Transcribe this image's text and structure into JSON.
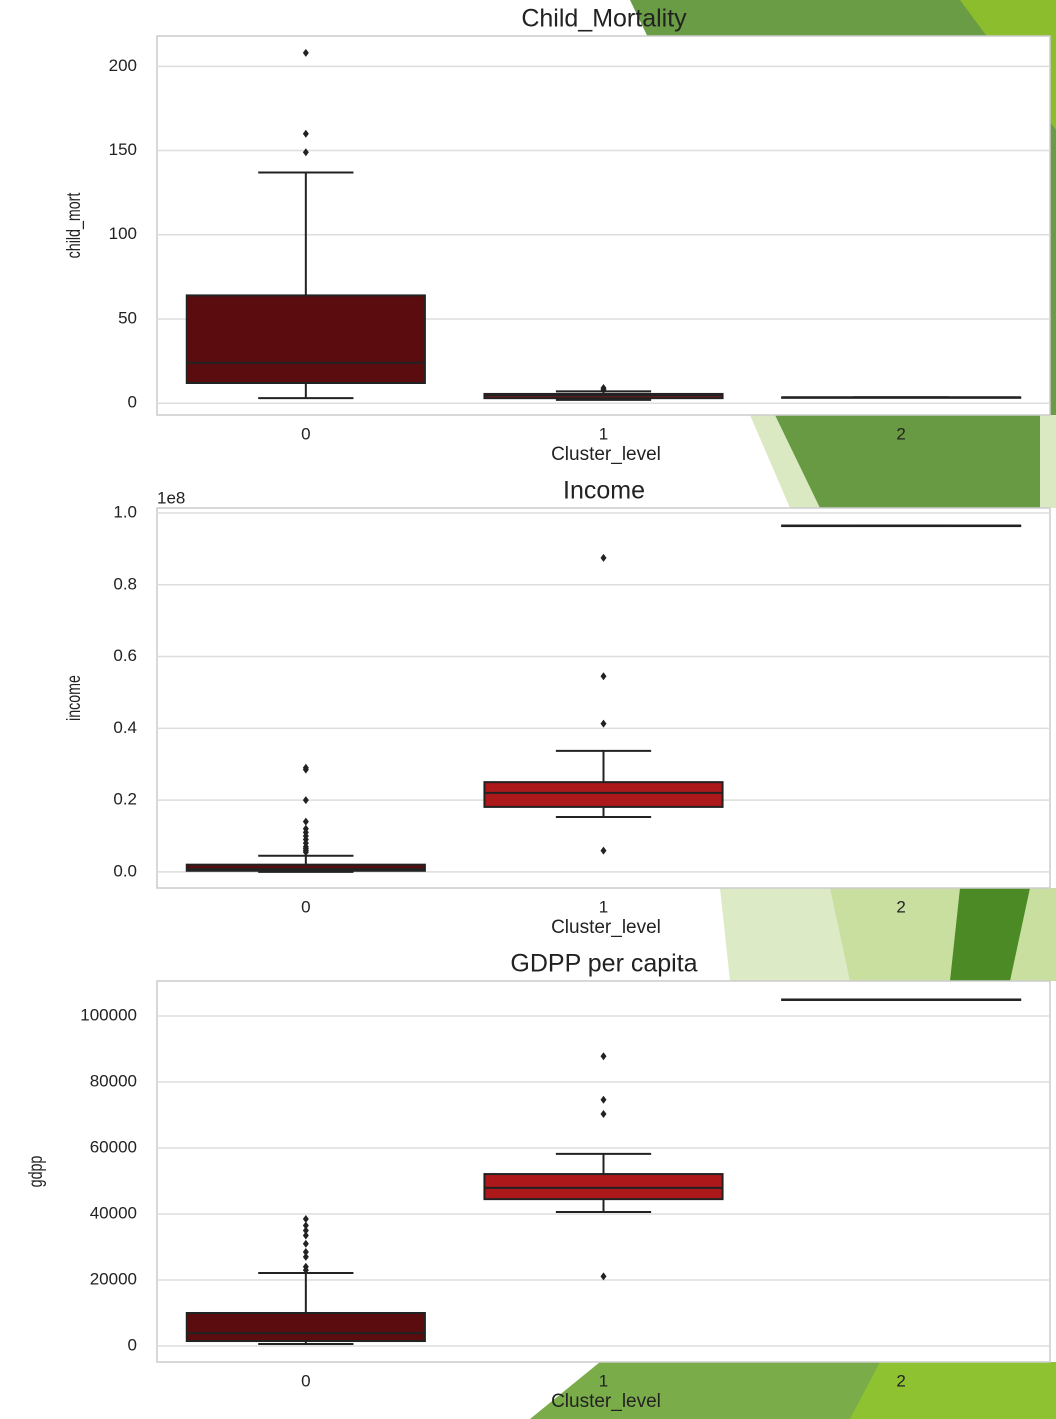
{
  "chart_data": [
    {
      "type": "box",
      "title": "Child_Mortality",
      "ylabel": "child_mort",
      "xlabel": "Cluster_level",
      "categories": [
        "0",
        "1",
        "2"
      ],
      "colors": [
        "#5a0c0e",
        "#ad181b",
        "#b42020"
      ],
      "boxes": [
        {
          "min": 3,
          "q1": 12,
          "median": 24,
          "q3": 64,
          "max": 137,
          "outliers": [
            149,
            160,
            208
          ]
        },
        {
          "min": 2,
          "q1": 3,
          "median": 4.5,
          "q3": 5.5,
          "max": 7,
          "outliers": [
            8,
            9
          ]
        },
        {
          "min": 3.5,
          "q1": 3.5,
          "median": 3.5,
          "q3": 3.5,
          "max": 3.5,
          "outliers": []
        }
      ],
      "ylim": [
        -7,
        218
      ],
      "yticks": [
        0,
        50,
        100,
        150,
        200
      ],
      "grid": true
    },
    {
      "type": "box",
      "title": "Income",
      "ylabel": "income",
      "xlabel": "Cluster_level",
      "offset_text": "1e8",
      "categories": [
        "0",
        "1",
        "2"
      ],
      "colors": [
        "#5a0c0e",
        "#ad181b",
        "#b42020"
      ],
      "boxes": [
        {
          "min": 0,
          "q1": 0.003,
          "median": 0.008,
          "q3": 0.02,
          "max": 0.045,
          "outliers": [
            0.055,
            0.06,
            0.065,
            0.07,
            0.08,
            0.09,
            0.1,
            0.11,
            0.12,
            0.14,
            0.2,
            0.285,
            0.29
          ]
        },
        {
          "min": 0.153,
          "q1": 0.181,
          "median": 0.22,
          "q3": 0.25,
          "max": 0.337,
          "outliers": [
            0.059,
            0.413,
            0.545,
            0.875
          ]
        },
        {
          "min": 0.965,
          "q1": 0.965,
          "median": 0.965,
          "q3": 0.965,
          "max": 0.965,
          "outliers": []
        }
      ],
      "ylim": [
        -0.045,
        1.014
      ],
      "yticks": [
        {
          "value": 0,
          "label": "0.0"
        },
        0.2,
        0.4,
        0.6,
        0.8,
        {
          "value": 1,
          "label": "1.0"
        }
      ],
      "grid": true
    },
    {
      "type": "box",
      "title": "GDPP per capita",
      "ylabel": "gdpp",
      "xlabel": "Cluster_level",
      "categories": [
        "0",
        "1",
        "2"
      ],
      "colors": [
        "#5a0c0e",
        "#ad181b",
        "#b42020"
      ],
      "boxes": [
        {
          "min": 600,
          "q1": 1500,
          "median": 3900,
          "q3": 10000,
          "max": 22100,
          "outliers": [
            23000,
            24000,
            27000,
            28500,
            31000,
            33500,
            35000,
            36500,
            38500
          ]
        },
        {
          "min": 40600,
          "q1": 44500,
          "median": 47900,
          "q3": 52100,
          "max": 58200,
          "outliers": [
            21100,
            70300,
            74600,
            87800
          ]
        },
        {
          "min": 105000,
          "q1": 105000,
          "median": 105000,
          "q3": 105000,
          "max": 105000,
          "outliers": []
        }
      ],
      "ylim": [
        -4850,
        110600
      ],
      "yticks": [
        0,
        20000,
        40000,
        60000,
        80000,
        100000
      ],
      "grid": true
    }
  ]
}
